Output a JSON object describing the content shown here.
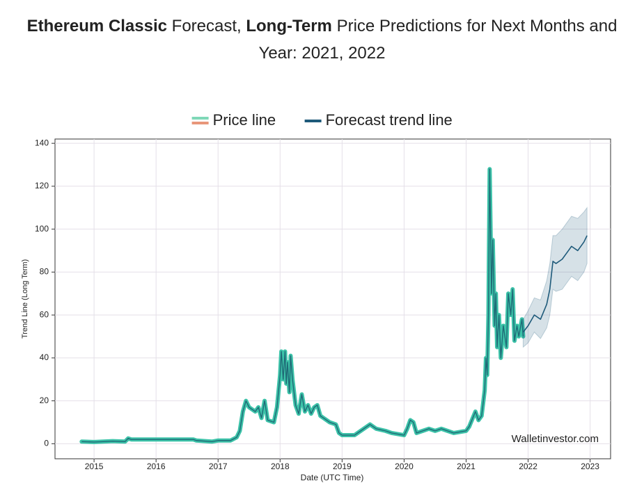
{
  "chart_data": {
    "type": "line",
    "title": [
      {
        "text": "Ethereum Classic",
        "bold": true
      },
      {
        "text": " Forecast, ",
        "bold": false
      },
      {
        "text": "Long-Term",
        "bold": true
      },
      {
        "text": " Price Predictions for Next Months and Year: 2021, 2022",
        "bold": false
      }
    ],
    "x_label": "Date (UTC Time)",
    "y_label": "Trend Line (Long Term)",
    "watermark": "Walletinvestor.com",
    "xlim": [
      2014.37,
      2023.33
    ],
    "xticks": [
      2015,
      2016,
      2017,
      2018,
      2019,
      2020,
      2021,
      2022,
      2023
    ],
    "ylim": [
      -7,
      142
    ],
    "yticks": [
      0,
      20,
      40,
      60,
      80,
      100,
      120,
      140
    ],
    "grid": true,
    "legend": "upper center",
    "series": [
      {
        "name": "Price line",
        "color": "#3cc2a8",
        "line_color": "#1f6a76",
        "legend_colors": [
          "#7fd8b8",
          "#e8967a"
        ],
        "x": [
          2014.8,
          2015.0,
          2015.3,
          2015.5,
          2015.55,
          2015.6,
          2016.6,
          2016.65,
          2016.9,
          2017.0,
          2017.2,
          2017.3,
          2017.35,
          2017.4,
          2017.45,
          2017.5,
          2017.6,
          2017.65,
          2017.7,
          2017.75,
          2017.8,
          2017.9,
          2017.95,
          2018.0,
          2018.02,
          2018.05,
          2018.08,
          2018.1,
          2018.12,
          2018.15,
          2018.17,
          2018.2,
          2018.25,
          2018.3,
          2018.35,
          2018.4,
          2018.45,
          2018.5,
          2018.55,
          2018.6,
          2018.65,
          2018.7,
          2018.8,
          2018.9,
          2018.95,
          2019.0,
          2019.2,
          2019.3,
          2019.45,
          2019.55,
          2019.7,
          2019.8,
          2020.0,
          2020.05,
          2020.1,
          2020.15,
          2020.2,
          2020.3,
          2020.4,
          2020.5,
          2020.6,
          2020.7,
          2020.8,
          2021.0,
          2021.05,
          2021.15,
          2021.2,
          2021.25,
          2021.3,
          2021.32,
          2021.34,
          2021.36,
          2021.38,
          2021.41,
          2021.43,
          2021.46,
          2021.48,
          2021.5,
          2021.53,
          2021.56,
          2021.6,
          2021.65,
          2021.68,
          2021.72,
          2021.75,
          2021.78,
          2021.82,
          2021.85,
          2021.9,
          2021.92
        ],
        "values": [
          1,
          0.8,
          1.2,
          1,
          2.5,
          2,
          2,
          1.5,
          1,
          1.5,
          1.5,
          3,
          6,
          15,
          20,
          17,
          15,
          17,
          12,
          20,
          11,
          10,
          17,
          32,
          43,
          30,
          43,
          28,
          38,
          24,
          41,
          30,
          18,
          14,
          23,
          15,
          18,
          14,
          17,
          18,
          13,
          12,
          10,
          9,
          5,
          4,
          4,
          6,
          9,
          7,
          6,
          5,
          4,
          7,
          11,
          10,
          5,
          6,
          7,
          6,
          7,
          6,
          5,
          6,
          8,
          15,
          11,
          13,
          25,
          40,
          32,
          60,
          128,
          70,
          95,
          55,
          70,
          45,
          60,
          40,
          55,
          45,
          70,
          60,
          72,
          48,
          55,
          50,
          58,
          50
        ]
      },
      {
        "name": "Forecast trend line",
        "color": "#1e5a7a",
        "band_color": "#1e5a7a",
        "x": [
          2021.92,
          2022.0,
          2022.1,
          2022.2,
          2022.3,
          2022.35,
          2022.4,
          2022.45,
          2022.55,
          2022.65,
          2022.7,
          2022.8,
          2022.9,
          2022.95
        ],
        "values": [
          52,
          55,
          60,
          58,
          65,
          72,
          85,
          84,
          86,
          90,
          92,
          90,
          94,
          97
        ],
        "upper": [
          58,
          62,
          68,
          67,
          76,
          84,
          97,
          97,
          100,
          104,
          106,
          105,
          108,
          110
        ],
        "lower": [
          45,
          47,
          52,
          49,
          54,
          60,
          72,
          71,
          72,
          76,
          78,
          76,
          80,
          84
        ]
      }
    ]
  }
}
